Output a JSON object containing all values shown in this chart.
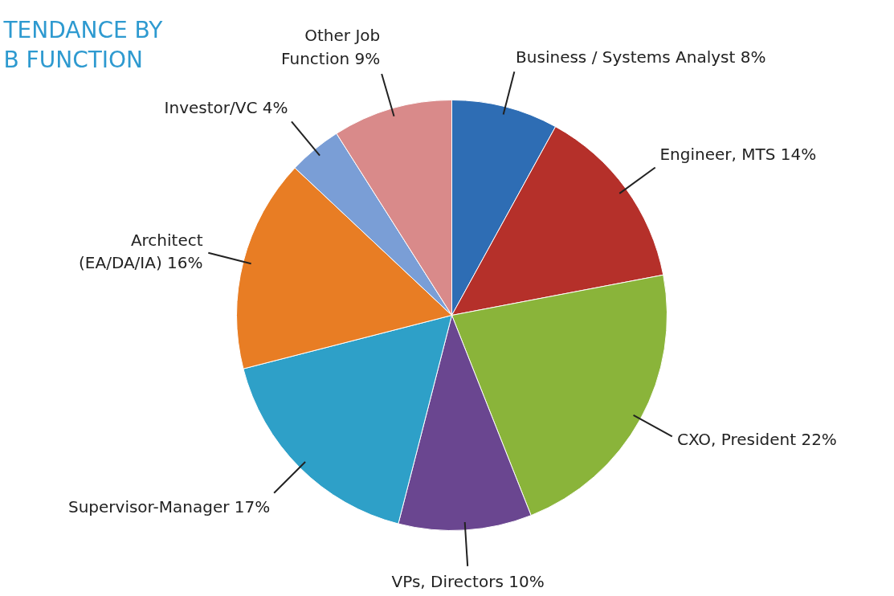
{
  "chart_data": {
    "type": "pie",
    "title": "TENDANCE BY\nB FUNCTION",
    "categories": [
      "Business / Systems Analyst",
      "Engineer, MTS",
      "CXO, President",
      "VPs, Directors",
      "Supervisor-Manager",
      "Architect\n(EA/DA/IA)",
      "Investor/VC",
      "Other Job\nFunction"
    ],
    "values": [
      8,
      14,
      22,
      10,
      17,
      16,
      4,
      9
    ],
    "colors": [
      "#2e6db4",
      "#b5302a",
      "#8ab43a",
      "#6a4690",
      "#2ea0c8",
      "#e87d24",
      "#7a9ed6",
      "#d98a8a"
    ],
    "value_labels": [
      "8%",
      "14%",
      "22%",
      "10%",
      "17%",
      "16%",
      "4%",
      "9%"
    ]
  }
}
